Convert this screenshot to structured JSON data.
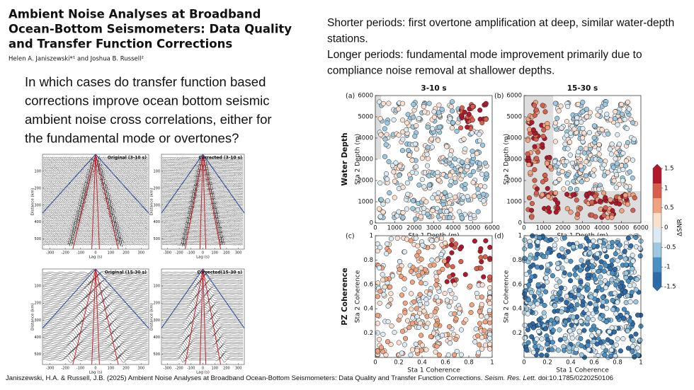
{
  "header": {
    "title_lines": [
      "Ambient Noise Analyses at Broadband",
      "Ocean-Bottom Seismometers: Data Quality",
      "and Transfer Function Corrections"
    ],
    "authors": "Helen A. Janiszewski*¹ and Joshua B. Russell²"
  },
  "question_lines": [
    "In which cases do transfer function based",
    "corrections improve ocean bottom seismic",
    "ambient noise cross correlations, either for",
    "the fundamental mode or overtones?"
  ],
  "findings_lines": [
    "Shorter periods: first overtone amplification at deep, similar water-depth",
    "stations.",
    "Longer periods: fundamental mode improvement primarily due to",
    "compliance noise removal at shallower depths."
  ],
  "seismograms": {
    "panels": [
      {
        "title": "Original (3-10 s)"
      },
      {
        "title": "Corrected (3-10 s)"
      },
      {
        "title": "Original (15-30 s)"
      },
      {
        "title": "Corrected(15-30 s)"
      }
    ],
    "x_label": "Lag (s)",
    "y_label": "Distance (km)",
    "xlim": [
      -350,
      350
    ],
    "xticks": [
      -300,
      -200,
      -100,
      0,
      100,
      200,
      300
    ],
    "ylim": [
      0,
      560
    ],
    "yticks": [
      100,
      200,
      300,
      400,
      500
    ]
  },
  "scatter": {
    "column_titles": [
      "3-10 s",
      "15-30 s"
    ],
    "row_labels": [
      "Water Depth",
      "PZ Coherence"
    ],
    "panels": [
      {
        "letter": "(a)",
        "x_label": "Sta 1 Depth (m)",
        "y_label": "Sta 2 Depth (m)"
      },
      {
        "letter": "(b)",
        "x_label": "Sta 1 Depth (m)",
        "y_label": "Sta 2 Depth (m)"
      },
      {
        "letter": "(c)",
        "x_label": "Sta 1 Coherence",
        "y_label": "Sta 2 Coherence"
      },
      {
        "letter": "(d)",
        "x_label": "Sta 1 Coherence",
        "y_label": "Sta 2 Coherence"
      }
    ],
    "depth_lim": [
      0,
      6000
    ],
    "depth_ticks": [
      0,
      1000,
      2000,
      3000,
      4000,
      5000,
      6000
    ],
    "coherence_lim": [
      0,
      1
    ],
    "coherence_xticks": [
      0,
      0.2,
      0.4,
      0.6,
      0.8,
      1
    ],
    "coherence_yticks": [
      0.2,
      0.4,
      0.6,
      0.8,
      1
    ],
    "colorbar": {
      "label": "ΔSNR",
      "lim": [
        -1.5,
        1.5
      ],
      "ticks": [
        1.5,
        1,
        0.5,
        0,
        -0.5,
        -1,
        -1.5
      ],
      "colors": [
        "#2c6aa8",
        "#4a90c4",
        "#9cc8e0",
        "#dcebf3",
        "#fbe0d0",
        "#f2a27e",
        "#d6604d",
        "#b2182b"
      ]
    }
  },
  "citation": {
    "text": "Janiszewski, H.A. & Russell, J.B. (2025) Ambient Noise Analyses at Broadband Ocean-Bottom Seismometers: Data Quality and Transfer Function Corrections. ",
    "journal": "Seism. Res. Lett.",
    "doi": " doi:10.1785/0220250106"
  }
}
